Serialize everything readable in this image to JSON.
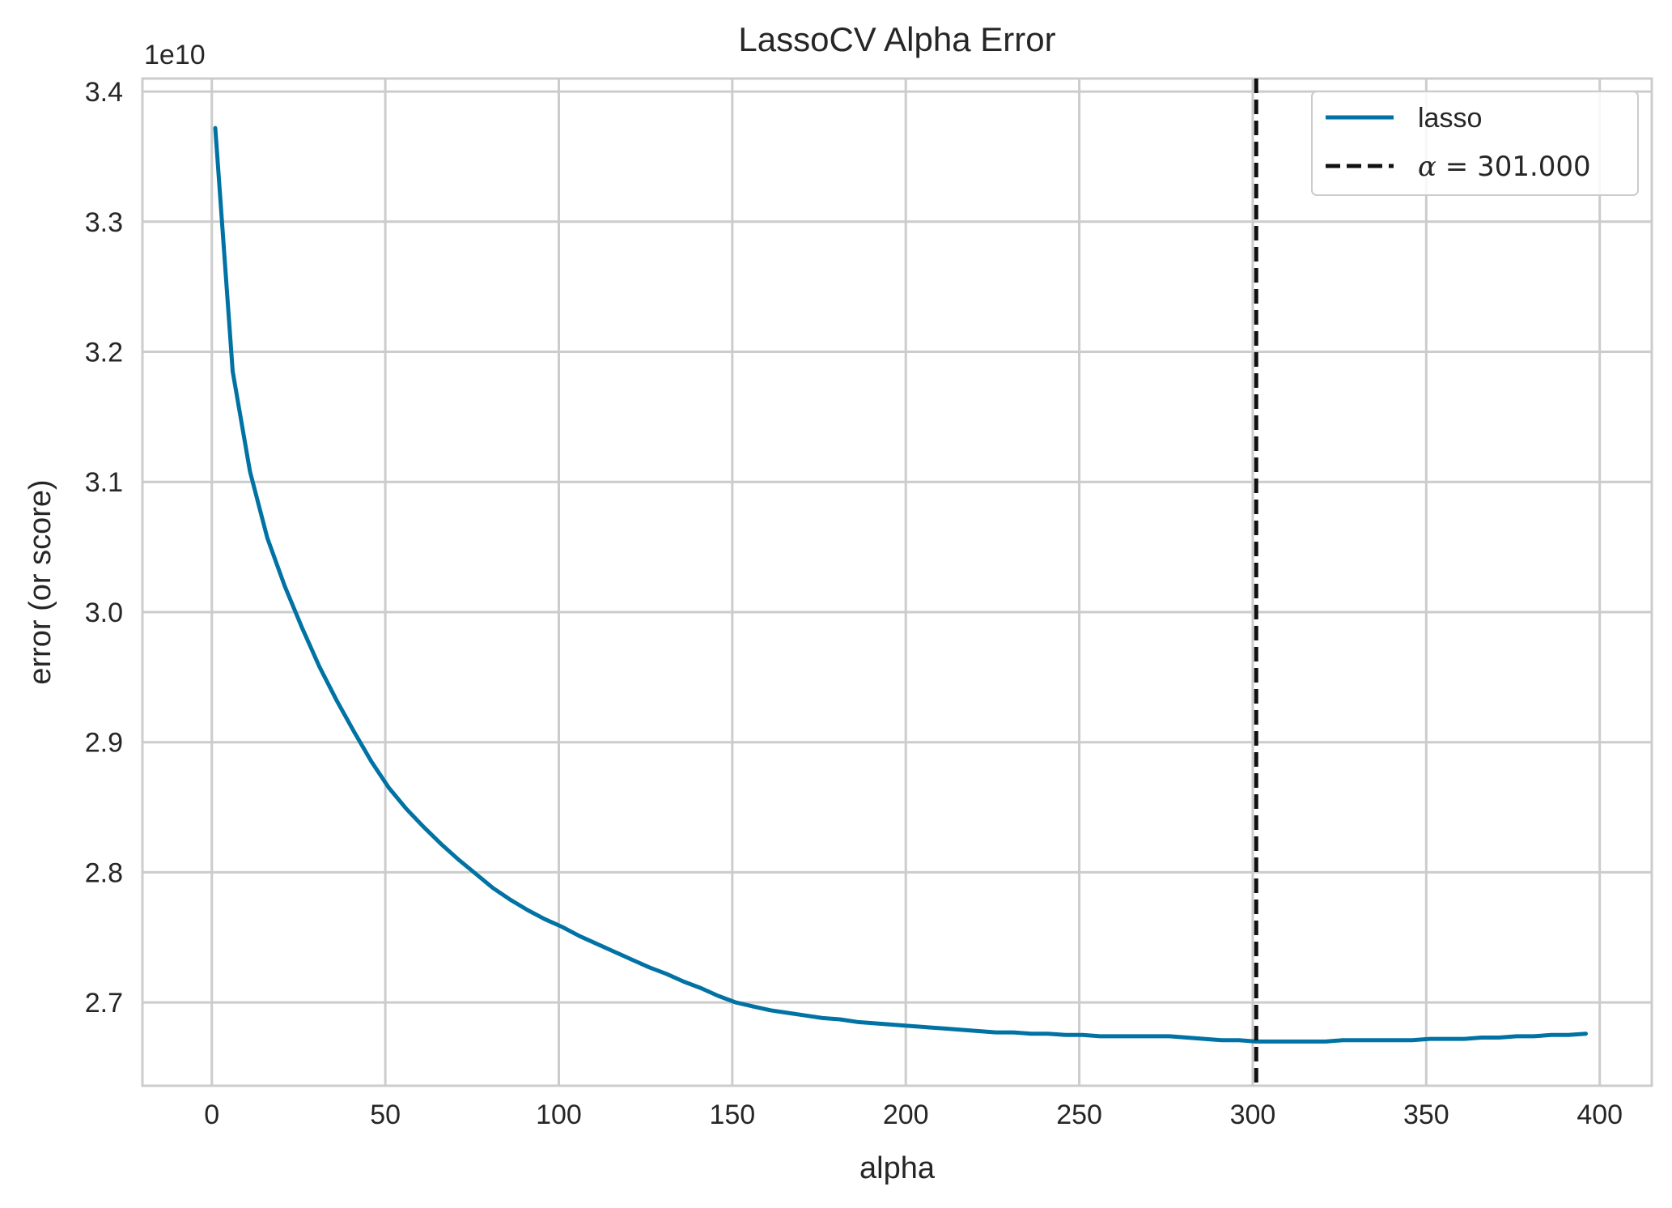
{
  "chart_data": {
    "type": "line",
    "title": "LassoCV Alpha Error",
    "xlabel": "alpha",
    "ylabel": "error (or score)",
    "y_offset_label": "1e10",
    "y_scale": 10000000000.0,
    "xlim": [
      -20,
      415
    ],
    "ylim": [
      2.636,
      3.41
    ],
    "xticks": [
      0,
      50,
      100,
      150,
      200,
      250,
      300,
      350,
      400
    ],
    "xtick_labels": [
      "0",
      "50",
      "100",
      "150",
      "200",
      "250",
      "300",
      "350",
      "400"
    ],
    "yticks": [
      2.7,
      2.8,
      2.9,
      3.0,
      3.1,
      3.2,
      3.3,
      3.4
    ],
    "ytick_labels": [
      "2.7",
      "2.8",
      "2.9",
      "3.0",
      "3.1",
      "3.2",
      "3.3",
      "3.4"
    ],
    "grid": true,
    "legend_position": "top-right",
    "series": [
      {
        "name": "lasso",
        "color": "#0072a3",
        "x": [
          1,
          6,
          11,
          16,
          21,
          26,
          31,
          36,
          41,
          46,
          51,
          56,
          61,
          66,
          71,
          76,
          81,
          86,
          91,
          96,
          101,
          106,
          111,
          116,
          121,
          126,
          131,
          136,
          141,
          146,
          151,
          156,
          161,
          166,
          171,
          176,
          181,
          186,
          191,
          196,
          201,
          206,
          211,
          216,
          221,
          226,
          231,
          236,
          241,
          246,
          251,
          256,
          261,
          266,
          271,
          276,
          281,
          286,
          291,
          296,
          301,
          306,
          311,
          316,
          321,
          326,
          331,
          336,
          341,
          346,
          351,
          356,
          361,
          366,
          371,
          376,
          381,
          386,
          391,
          396
        ],
        "y": [
          3.372,
          3.185,
          3.108,
          3.057,
          3.02,
          2.988,
          2.958,
          2.932,
          2.908,
          2.885,
          2.865,
          2.849,
          2.835,
          2.822,
          2.81,
          2.799,
          2.788,
          2.779,
          2.771,
          2.764,
          2.758,
          2.751,
          2.745,
          2.739,
          2.733,
          2.727,
          2.722,
          2.716,
          2.711,
          2.705,
          2.7,
          2.697,
          2.694,
          2.692,
          2.69,
          2.688,
          2.687,
          2.685,
          2.684,
          2.683,
          2.682,
          2.681,
          2.68,
          2.679,
          2.678,
          2.677,
          2.677,
          2.676,
          2.676,
          2.675,
          2.675,
          2.674,
          2.674,
          2.674,
          2.674,
          2.674,
          2.673,
          2.672,
          2.671,
          2.671,
          2.67,
          2.67,
          2.67,
          2.67,
          2.67,
          2.671,
          2.671,
          2.671,
          2.671,
          2.671,
          2.672,
          2.672,
          2.672,
          2.673,
          2.673,
          2.674,
          2.674,
          2.675,
          2.675,
          2.676
        ]
      }
    ],
    "vline": {
      "x": 301,
      "color": "#111111",
      "style": "dashed",
      "label_symbol": "α",
      "label_rest": " = 301.000"
    },
    "colors": {
      "grid": "#cccccc",
      "axes_edge": "#cccccc",
      "text": "#262626"
    }
  }
}
